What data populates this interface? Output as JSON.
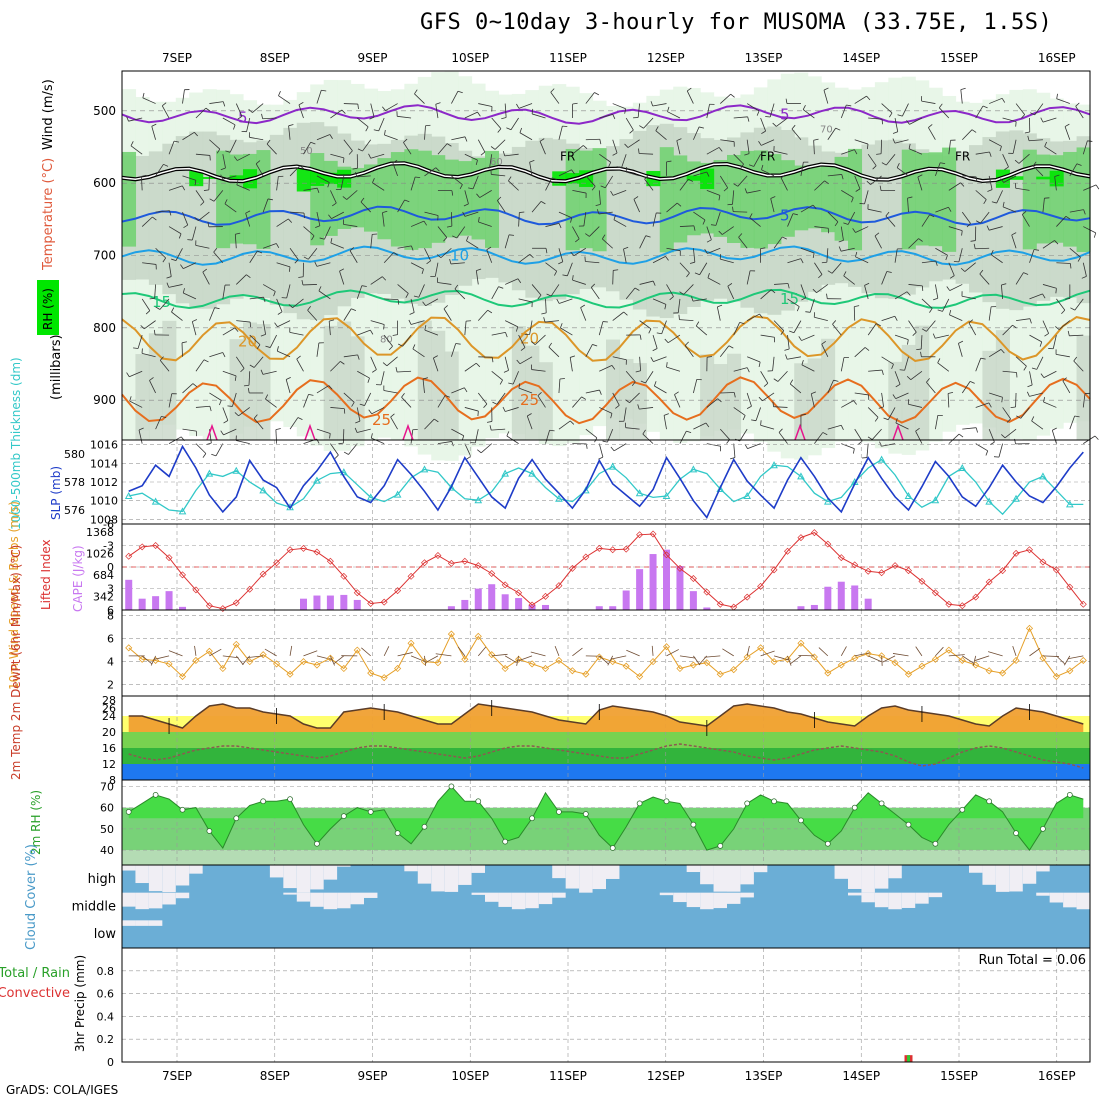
{
  "title": "GFS 0~10day 3-hourly for MUSOMA (33.75E, 1.5S)",
  "credit": "GrADS: COLA/IGES",
  "dates": [
    "7SEP",
    "8SEP",
    "9SEP",
    "10SEP",
    "11SEP",
    "12SEP",
    "13SEP",
    "14SEP",
    "15SEP",
    "16SEP"
  ],
  "colors": {
    "rh_light": "#e6f5e6",
    "rh_mid": "#c8d7c8",
    "rh_green": "#73d273",
    "rh_bright": "#00e600",
    "thickness": "#32c8c8",
    "slp": "#1e3cc8",
    "lifted": "#dc3232",
    "cape": "#c878f0",
    "wind": "#e6a028",
    "temp_fill": "#f0a032",
    "rh2_fill": "#46dc46",
    "cloud": "#6baed6",
    "precip_rain": "#32c832",
    "precip_conv": "#dc3232"
  },
  "chart_data": [
    {
      "type": "heatmap",
      "name": "upper_air",
      "ylabels": [
        "Wind (m/s)",
        "Temperature (°C)",
        "RH (%)",
        "(millibars)"
      ],
      "yticks": [
        500,
        600,
        700,
        800,
        900
      ],
      "ylim": [
        445,
        955
      ],
      "temperature_contours": [
        {
          "label": "5",
          "level_mb": 505,
          "color": "#8c28c8"
        },
        {
          "label": "FR",
          "level_mb": 585,
          "color": "#000000"
        },
        {
          "label": "5",
          "level_mb": 645,
          "color": "#1e5adc"
        },
        {
          "label": "10",
          "level_mb": 700,
          "color": "#1ea0e6"
        },
        {
          "label": "15",
          "level_mb": 760,
          "color": "#1ec878"
        },
        {
          "label": "20",
          "level_mb": 815,
          "color": "#dc9628"
        },
        {
          "label": "25",
          "level_mb": 900,
          "color": "#e66e1e"
        }
      ],
      "rh_labels": [
        "50",
        "60",
        "70",
        "80"
      ]
    },
    {
      "type": "line",
      "name": "slp_thickness",
      "ylabel_left": "1000-500mb Thickness (dm)",
      "ylabel_right": "SLP (mb)",
      "yticks_left": [
        576,
        578,
        580
      ],
      "yticks_right": [
        1008,
        1010,
        1012,
        1014,
        1016
      ],
      "series": [
        {
          "name": "SLP",
          "values": [
            1011,
            1011.6,
            1013.8,
            1012.6,
            1015.8,
            1013.5,
            1010.6,
            1008.8,
            1010.4,
            1014.3,
            1012.2,
            1011.4,
            1009.2,
            1011.6,
            1013.2,
            1015.2,
            1012.6,
            1010.4,
            1009.8,
            1011.6,
            1014.4,
            1012.8,
            1011,
            1009,
            1011.5,
            1014.6,
            1012.5,
            1010.4,
            1009.2,
            1012.4,
            1014.4,
            1012.3,
            1010.8,
            1009.2,
            1011.2,
            1014.3,
            1011.8,
            1010.6,
            1009.4,
            1011.2,
            1014.6,
            1012.4,
            1010,
            1008.2,
            1011.4,
            1014.4,
            1012.1,
            1010.6,
            1009.2,
            1012.2,
            1014.6,
            1012.6,
            1010.3,
            1008.8,
            1011.8,
            1014.6,
            1012.4,
            1010.4,
            1009,
            1011.5,
            1014.2,
            1012.6,
            1010.4,
            1009.4,
            1011.4,
            1013.8,
            1012,
            1010.5,
            1009.8,
            1011.5,
            1013.5,
            1015.2
          ]
        },
        {
          "name": "Thickness",
          "values": [
            577.0,
            577.2,
            576.6,
            576.0,
            575.9,
            577.4,
            578.6,
            578.4,
            578.8,
            578.0,
            577.4,
            576.5,
            576.2,
            576.8,
            578.1,
            578.6,
            578.7,
            577.8,
            576.9,
            576.6,
            577.1,
            578.3,
            578.9,
            578.7,
            577.6,
            576.8,
            576.7,
            577.3,
            578.6,
            579.0,
            578.6,
            577.6,
            576.8,
            576.6,
            577.4,
            578.6,
            579.1,
            578.3,
            577.2,
            576.9,
            577.0,
            578.2,
            578.9,
            578.6,
            577.5,
            576.6,
            577.0,
            578.4,
            579.2,
            579.1,
            578.4,
            577.2,
            576.6,
            576.9,
            578.0,
            579.0,
            579.6,
            578.5,
            577.0,
            576.2,
            576.7,
            578.4,
            579.0,
            578.0,
            576.6,
            575.7,
            576.8,
            578.0,
            578.4,
            577.4,
            576.4,
            576.4
          ]
        }
      ]
    },
    {
      "type": "bar",
      "name": "cape_li",
      "ylabel_left": "Lifted Index",
      "ylabel_right": "CAPE (J/kg)",
      "yticks_left": [
        "6",
        "3",
        "0",
        "-3",
        "-6"
      ],
      "yticks_right": [
        "342",
        "684",
        "1026",
        "1368"
      ],
      "series": [
        {
          "name": "CAPE",
          "values": [
            480,
            180,
            220,
            300,
            50,
            0,
            0,
            0,
            0,
            0,
            0,
            0,
            0,
            180,
            230,
            230,
            240,
            160,
            0,
            0,
            0,
            0,
            0,
            0,
            60,
            160,
            340,
            410,
            250,
            190,
            80,
            80,
            0,
            0,
            0,
            60,
            60,
            310,
            650,
            890,
            960,
            700,
            300,
            40,
            0,
            0,
            0,
            0,
            0,
            0,
            60,
            80,
            370,
            450,
            390,
            180,
            0,
            0,
            0,
            0,
            0,
            0,
            0,
            0,
            0,
            0,
            0,
            0,
            0,
            0,
            0,
            0
          ]
        },
        {
          "name": "Lifted Index",
          "values": [
            -1.5,
            -2.8,
            -3.0,
            -1.3,
            1.1,
            3.2,
            5.4,
            5.8,
            5.0,
            3.1,
            1.0,
            -0.6,
            -2.4,
            -2.6,
            -2.1,
            -0.8,
            1.3,
            3.6,
            5.1,
            4.9,
            3.3,
            1.3,
            -0.6,
            -1.6,
            -0.5,
            -0.8,
            -0.2,
            0.9,
            2.5,
            3.6,
            5.3,
            4.1,
            2.6,
            0.2,
            -1.4,
            -2.6,
            -2.4,
            -2.5,
            -4.5,
            -4.6,
            -1.7,
            0.2,
            1.6,
            3.5,
            5.2,
            5.6,
            4.2,
            2.7,
            0.4,
            -2.2,
            -4.1,
            -4.8,
            -3.2,
            -1.3,
            -0.3,
            0.6,
            0.8,
            -0.2,
            0.5,
            2.0,
            3.6,
            5.2,
            5.4,
            4.2,
            2.1,
            0.5,
            -1.9,
            -2.4,
            -0.7,
            0.4,
            2.8,
            5.2
          ]
        }
      ]
    },
    {
      "type": "line",
      "name": "wind10m",
      "ylabel": "10m Wind Speed & Barbs (m/s)",
      "yticks": [
        2,
        4,
        6,
        8
      ],
      "ylim": [
        1,
        8.5
      ],
      "values": [
        5.2,
        4.2,
        4.1,
        3.8,
        2.7,
        4.1,
        4.9,
        3.4,
        5.5,
        4.0,
        4.6,
        3.8,
        2.9,
        4.0,
        3.7,
        4.3,
        3.4,
        5.0,
        3.0,
        2.6,
        3.4,
        5.6,
        4.0,
        3.9,
        6.4,
        4.2,
        6.2,
        4.6,
        3.4,
        4.2,
        3.8,
        3.4,
        4.1,
        3.2,
        2.9,
        4.4,
        4.0,
        3.6,
        2.7,
        4.0,
        5.3,
        3.4,
        3.7,
        3.9,
        2.9,
        3.3,
        4.4,
        5.2,
        4.0,
        4.2,
        5.6,
        4.4,
        3.0,
        3.7,
        4.3,
        4.7,
        4.5,
        3.9,
        2.9,
        3.6,
        4.2,
        5.0,
        4.1,
        3.7,
        3.2,
        3.0,
        4.1,
        6.9,
        4.3,
        2.7,
        3.2,
        4.1
      ]
    },
    {
      "type": "area",
      "name": "temp_dewpoint",
      "ylabel": "2m Temp 2m DewPt (6hr Min/Max) (°C)",
      "yticks": [
        8,
        12,
        16,
        20,
        24,
        26,
        28
      ],
      "series": [
        {
          "name": "2m Temp",
          "values": [
            24,
            24,
            23,
            22,
            21,
            24,
            26.5,
            27,
            26,
            26,
            25,
            24.5,
            24,
            22,
            21,
            21,
            25,
            25.5,
            26,
            25.5,
            25,
            24,
            23,
            22,
            22,
            24.5,
            27,
            26.5,
            26,
            25.5,
            25,
            24,
            23,
            22.5,
            22,
            25.5,
            26.5,
            26,
            25.5,
            25,
            24,
            22.5,
            22,
            21.5,
            24,
            26.5,
            27,
            26.5,
            26,
            25,
            24.5,
            23.5,
            22.5,
            22,
            21.5,
            24,
            26,
            26.5,
            25.5,
            25,
            24.5,
            24,
            23,
            22,
            21.5,
            24,
            26,
            25.5,
            25,
            24,
            23,
            22
          ]
        },
        {
          "name": "2m DewPt",
          "values": [
            14.5,
            13.5,
            13.0,
            13.5,
            14.5,
            15.5,
            16.0,
            16.5,
            16.5,
            16.0,
            15.5,
            15.0,
            14.5,
            14.0,
            13.5,
            14.0,
            15.0,
            16.0,
            16.5,
            16.5,
            16.0,
            15.5,
            15.0,
            14.5,
            14.0,
            13.5,
            14.0,
            15.0,
            16.0,
            16.5,
            16.5,
            16.0,
            15.5,
            15.0,
            14.5,
            14.0,
            13.5,
            13.5,
            14.5,
            15.5,
            16.5,
            17.0,
            16.5,
            16.0,
            15.5,
            15.0,
            14.0,
            13.5,
            13.0,
            13.5,
            14.5,
            15.5,
            16.0,
            16.5,
            16.0,
            15.5,
            15.0,
            14.0,
            12.5,
            11.5,
            12.0,
            13.5,
            15.0,
            16.0,
            16.5,
            16.0,
            15.0,
            14.0,
            13.0,
            12.5,
            12.0,
            11.0
          ]
        }
      ]
    },
    {
      "type": "area",
      "name": "rh2m",
      "ylabel": "2m RH (%)",
      "yticks": [
        40,
        50,
        60,
        70
      ],
      "ylim": [
        33,
        73
      ],
      "values": [
        58,
        62,
        66,
        64,
        59,
        60,
        49,
        41,
        55,
        61,
        63,
        63,
        64,
        52,
        43,
        50,
        56,
        60,
        58,
        59,
        48,
        43,
        51,
        63,
        70,
        63,
        63,
        55,
        44,
        46,
        55,
        67,
        58,
        58,
        57,
        47,
        41,
        51,
        62,
        65,
        63,
        62,
        52,
        40,
        42,
        50,
        62,
        66,
        63,
        62,
        54,
        47,
        43,
        49,
        60,
        67,
        62,
        57,
        52,
        46,
        43,
        52,
        59,
        66,
        63,
        58,
        48,
        40,
        50,
        62,
        66,
        64
      ]
    },
    {
      "type": "heatmap",
      "name": "cloud_cover",
      "ylabel": "Cloud Cover (%)",
      "rows": [
        "high",
        "middle",
        "low"
      ]
    },
    {
      "type": "bar",
      "name": "precip3hr",
      "ylabel": "3hr Precip (mm)",
      "legend": [
        "Total / Rain",
        "Convective"
      ],
      "yticks": [
        0,
        0.2,
        0.4,
        0.6,
        0.8
      ],
      "ylim": [
        0,
        1.0
      ],
      "run_total": "Run Total = 0.06",
      "bars": [
        {
          "time_step": 58,
          "value": 0.06
        }
      ]
    }
  ]
}
